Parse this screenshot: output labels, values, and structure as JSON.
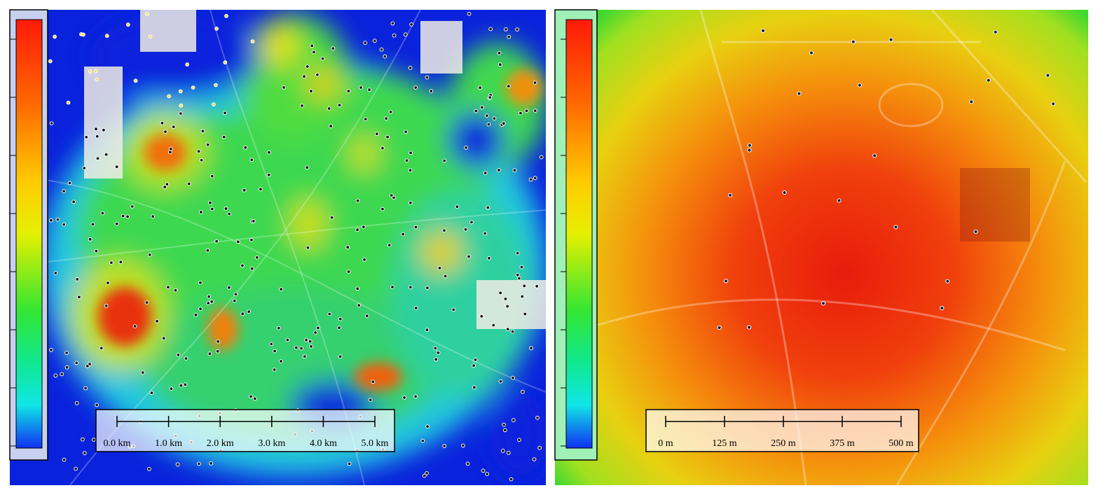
{
  "left_map": {
    "scale_labels": [
      "0.0 km",
      "1.0 km",
      "2.0 km",
      "3.0 km",
      "4.0 km",
      "5.0 km"
    ]
  },
  "right_map": {
    "scale_labels": [
      "0 m",
      "125 m",
      "250 m",
      "375 m",
      "500 m"
    ]
  }
}
